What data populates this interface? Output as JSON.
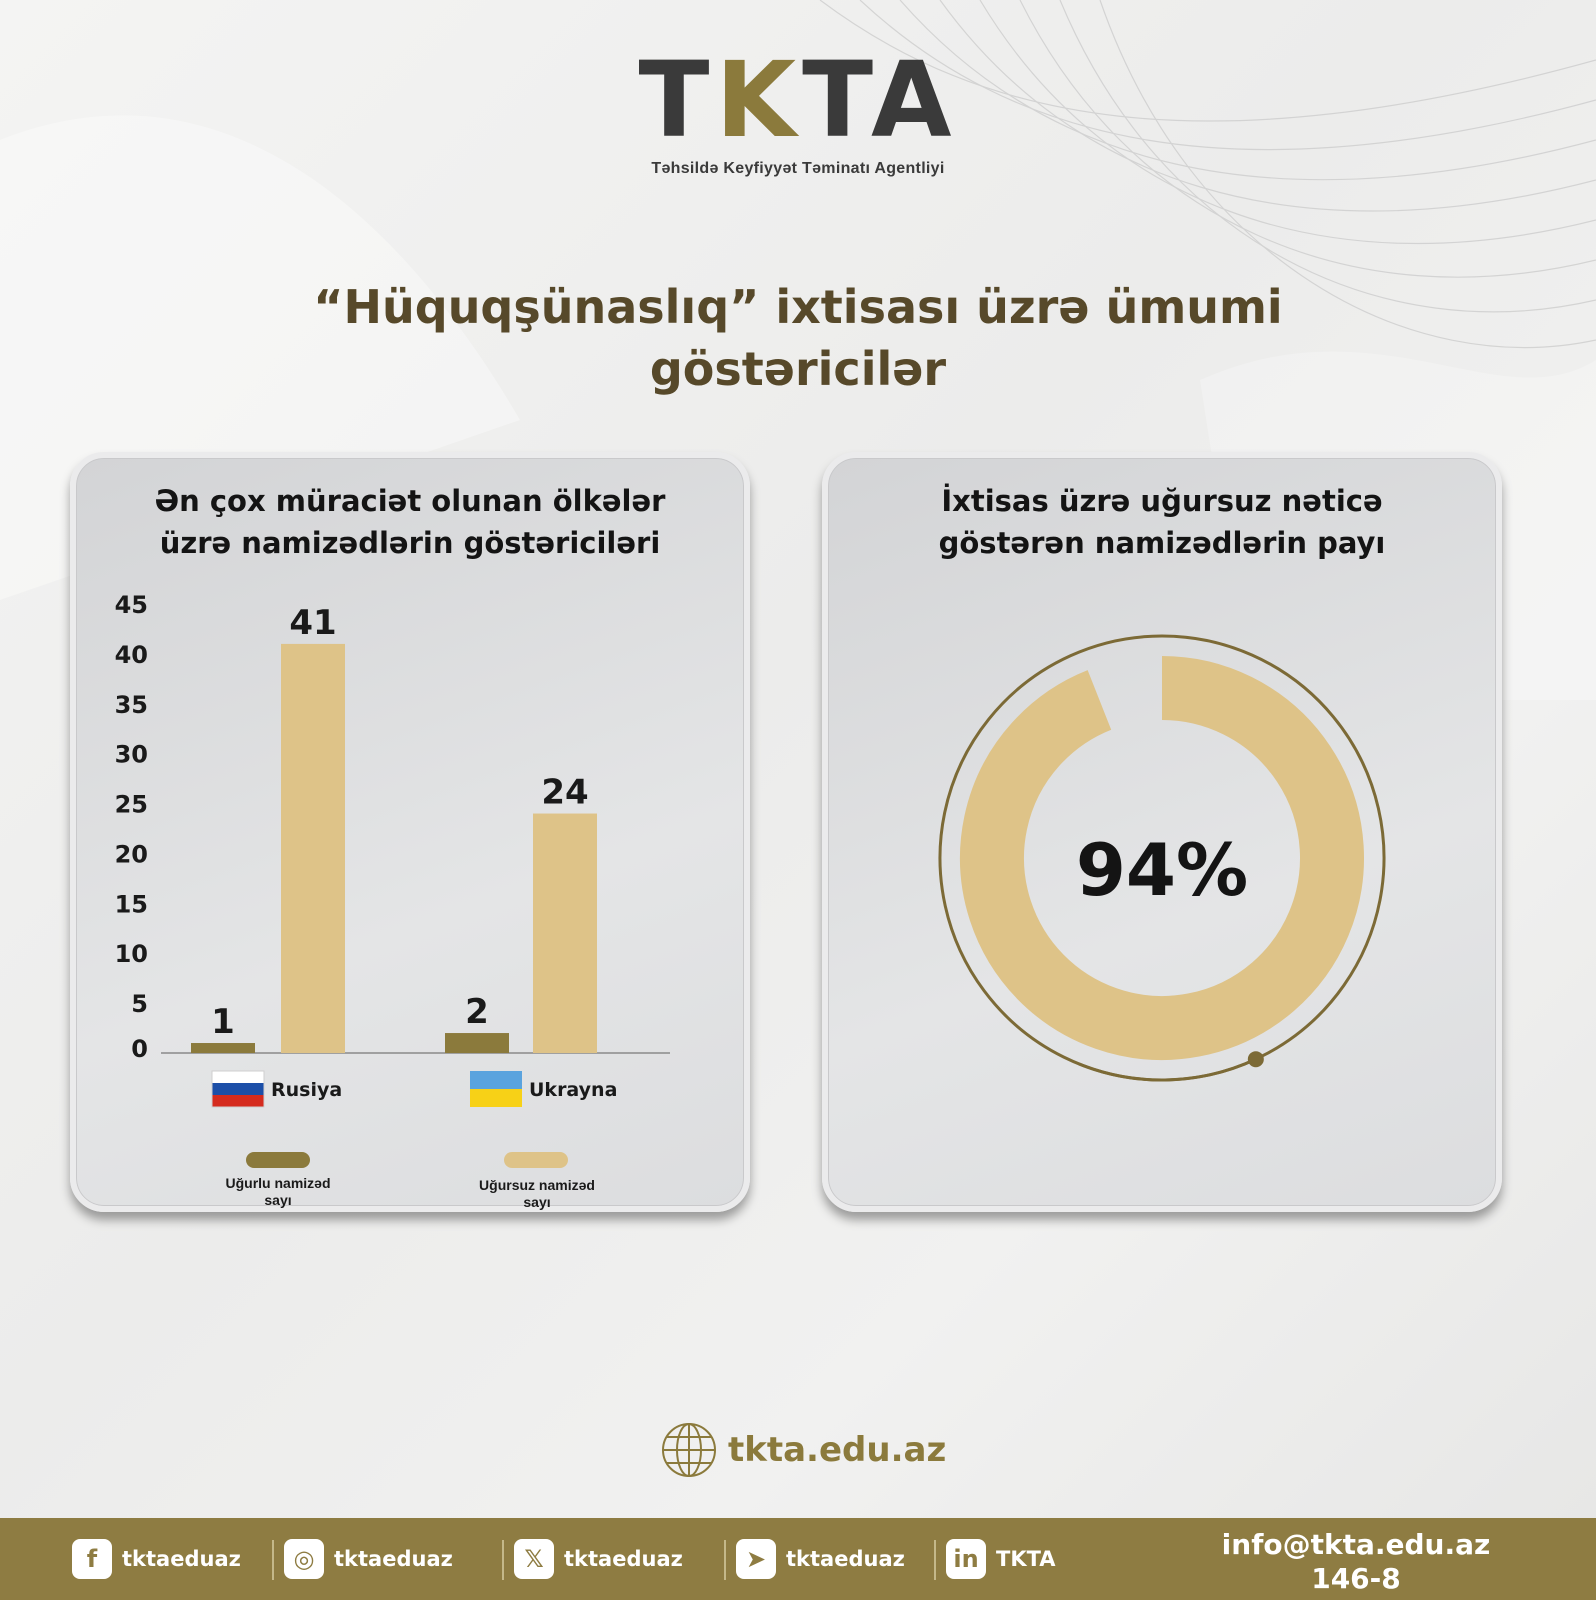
{
  "logo": {
    "wordmark": "TKTA",
    "subtitle": "Təhsildə Keyfiyyət Təminatı Agentliyi"
  },
  "title_line1": "“Hüquqşünaslıq” ixtisası üzrə ümumi",
  "title_line2": "göstəricilər",
  "colors": {
    "dark_gold": "#8b7a3c",
    "light_gold": "#dec388",
    "footer": "#8e7c42",
    "title": "#57492a"
  },
  "left_card": {
    "title_line1": "Ən çox müraciət olunan ölkələr",
    "title_line2": "üzrə namizədlərin göstəriciləri"
  },
  "right_card": {
    "title_line1": "İxtisas üzrə uğursuz nəticə",
    "title_line2": "göstərən namizədlərin payı"
  },
  "chart_data": [
    {
      "type": "bar",
      "categories": [
        "Rusiya",
        "Ukrayna"
      ],
      "category_icons": [
        "russia-flag",
        "ukraine-flag"
      ],
      "series": [
        {
          "name": "Uğurlu namizəd sayı",
          "values": [
            1,
            2
          ],
          "color": "#8b7a3c"
        },
        {
          "name": "Uğursuz namizəd sayı",
          "values": [
            41,
            24
          ],
          "color": "#dec388"
        }
      ],
      "data_labels": [
        "1",
        "41",
        "2",
        "24"
      ],
      "yticks": [
        "0",
        "5",
        "10",
        "15",
        "20",
        "25",
        "30",
        "35",
        "40",
        "45"
      ],
      "ylim": [
        0,
        45
      ],
      "legend": [
        {
          "line1": "Uğurlu namizəd",
          "line2": "sayı"
        },
        {
          "line1": "Uğursuz namizəd",
          "line2": "sayı"
        }
      ],
      "legend_position": "bottom",
      "grid": false
    },
    {
      "type": "pie",
      "style": "donut",
      "value": 94,
      "label": "94%",
      "color": "#dec388"
    }
  ],
  "website": "tkta.edu.az",
  "footer": {
    "socials": [
      {
        "icon": "facebook-icon",
        "glyph": "f",
        "handle": "tktaeduaz"
      },
      {
        "icon": "instagram-icon",
        "glyph": "◎",
        "handle": "tktaeduaz"
      },
      {
        "icon": "x-icon",
        "glyph": "𝕏",
        "handle": "tktaeduaz"
      },
      {
        "icon": "telegram-icon",
        "glyph": "➤",
        "handle": "tktaeduaz"
      },
      {
        "icon": "linkedin-icon",
        "glyph": "in",
        "handle": "TKTA"
      }
    ],
    "email": "info@tkta.edu.az",
    "phone": "146-8"
  }
}
